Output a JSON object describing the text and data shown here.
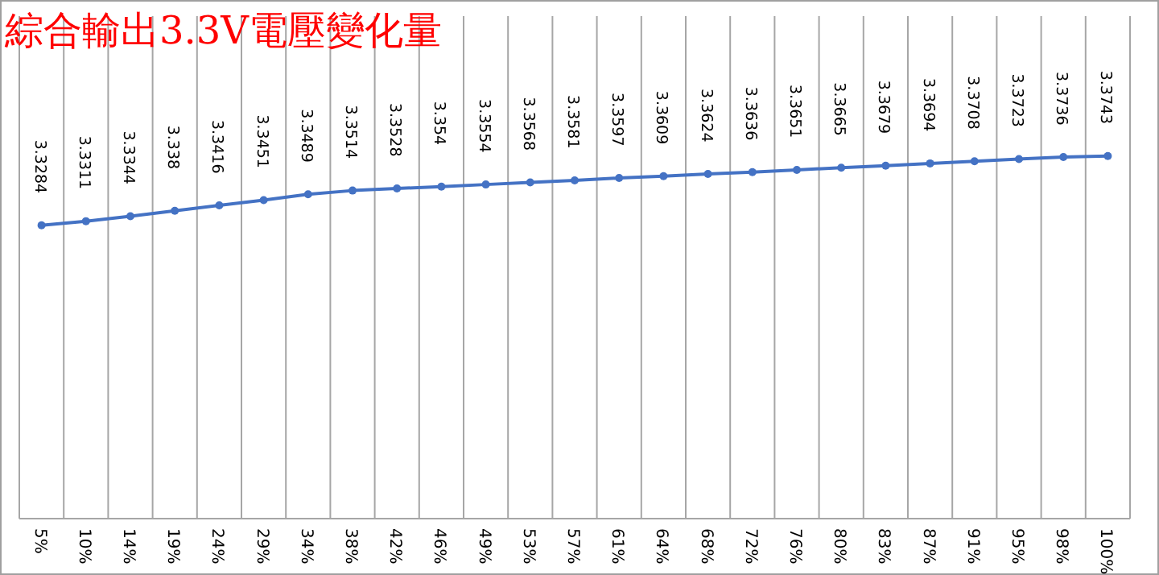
{
  "chart_data": {
    "type": "line",
    "title": "綜合輸出3.3V電壓變化量",
    "categories": [
      "5%",
      "10%",
      "14%",
      "19%",
      "24%",
      "29%",
      "34%",
      "38%",
      "42%",
      "46%",
      "49%",
      "53%",
      "57%",
      "61%",
      "64%",
      "68%",
      "72%",
      "76%",
      "80%",
      "83%",
      "87%",
      "91%",
      "95%",
      "98%",
      "100%"
    ],
    "values": [
      3.3284,
      3.3311,
      3.3344,
      3.338,
      3.3416,
      3.3451,
      3.3489,
      3.3514,
      3.3528,
      3.354,
      3.3554,
      3.3568,
      3.3581,
      3.3597,
      3.3609,
      3.3624,
      3.3636,
      3.3651,
      3.3665,
      3.3679,
      3.3694,
      3.3708,
      3.3723,
      3.3736,
      3.3743
    ],
    "color": "#4472c4",
    "ylim": [
      3.134,
      3.467
    ],
    "data_labels": true,
    "marker": "circle",
    "line_style": "solid",
    "grid": "x"
  }
}
